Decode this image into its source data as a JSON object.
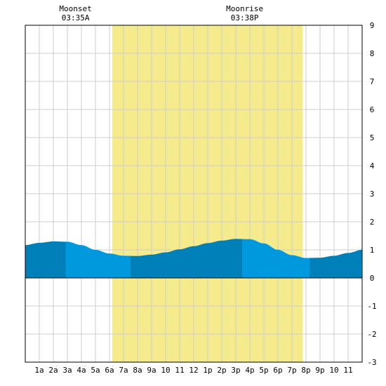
{
  "chart_data": {
    "type": "area",
    "title": "",
    "xlabel": "",
    "ylabel": "",
    "x_tick_labels": [
      "1a",
      "2a",
      "3a",
      "4a",
      "5a",
      "6a",
      "7a",
      "8a",
      "9a",
      "10",
      "11",
      "12",
      "1p",
      "2p",
      "3p",
      "4p",
      "5p",
      "6p",
      "7p",
      "8p",
      "9p",
      "10",
      "11"
    ],
    "ylim": [
      -3,
      9
    ],
    "y_ticks": [
      -3,
      -2,
      -1,
      0,
      1,
      2,
      3,
      4,
      5,
      6,
      7,
      8,
      9
    ],
    "grid": true,
    "daylight": {
      "start_hour": 6.2,
      "end_hour": 19.75,
      "color": "#f5eb8c"
    },
    "events": [
      {
        "label": "Moonset",
        "time": "03:35A",
        "hour": 3.58
      },
      {
        "label": "Moonrise",
        "time": "03:38P",
        "hour": 15.63
      }
    ],
    "tide": {
      "hours": [
        0,
        1,
        2,
        3,
        4,
        5,
        6,
        7,
        8,
        9,
        10,
        11,
        12,
        13,
        14,
        15,
        16,
        17,
        18,
        19,
        20,
        21,
        22,
        23,
        24
      ],
      "heights": [
        1.17,
        1.25,
        1.3,
        1.29,
        1.17,
        1.0,
        0.87,
        0.79,
        0.78,
        0.83,
        0.91,
        1.02,
        1.13,
        1.24,
        1.33,
        1.39,
        1.38,
        1.23,
        1.0,
        0.81,
        0.71,
        0.72,
        0.79,
        0.89,
        1.0
      ],
      "band_boundaries": [
        0,
        2.9,
        7.5,
        15.45,
        20.25,
        24
      ],
      "band_colors": [
        "#0080b8",
        "#0099dd"
      ]
    },
    "colors": {
      "grid": "#cccccc",
      "axis": "#000000"
    }
  }
}
